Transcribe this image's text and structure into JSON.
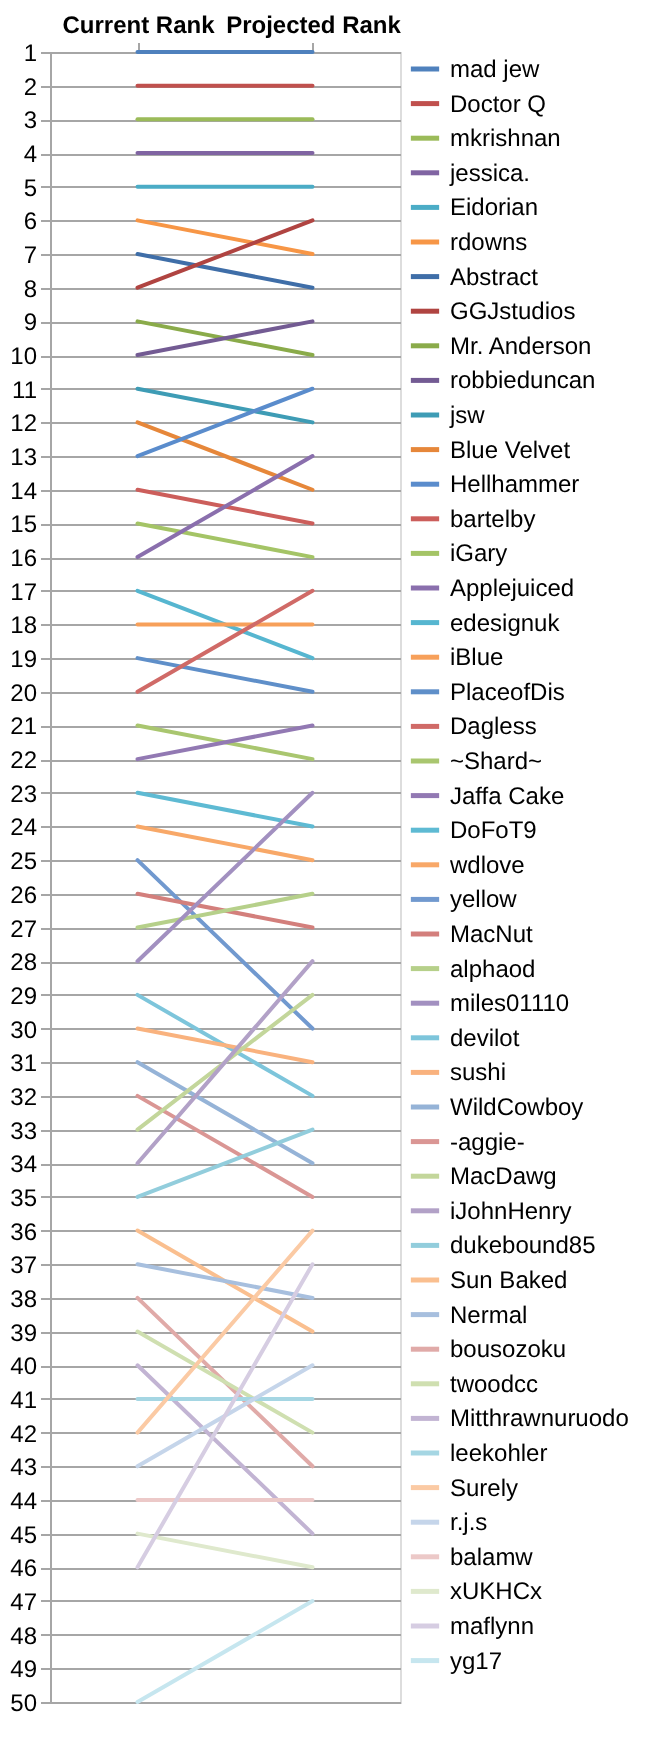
{
  "chart_data": {
    "type": "line",
    "categories": [
      "Current Rank",
      "Projected Rank"
    ],
    "ylim": [
      50,
      1
    ],
    "yticks": [
      1,
      2,
      3,
      4,
      5,
      6,
      7,
      8,
      9,
      10,
      11,
      12,
      13,
      14,
      15,
      16,
      17,
      18,
      19,
      20,
      21,
      22,
      23,
      24,
      25,
      26,
      27,
      28,
      29,
      30,
      31,
      32,
      33,
      34,
      35,
      36,
      37,
      38,
      39,
      40,
      41,
      42,
      43,
      44,
      45,
      46,
      47,
      48,
      49,
      50
    ],
    "grid": "y",
    "legend": "right",
    "series": [
      {
        "name": "mad jew",
        "color": "#4f81bd",
        "values": [
          1,
          1
        ]
      },
      {
        "name": "Doctor Q",
        "color": "#c0504d",
        "values": [
          2,
          2
        ]
      },
      {
        "name": "mkrishnan",
        "color": "#9bbb59",
        "values": [
          3,
          3
        ]
      },
      {
        "name": "jessica.",
        "color": "#8064a2",
        "values": [
          4,
          4
        ]
      },
      {
        "name": "Eidorian",
        "color": "#4bacc6",
        "values": [
          5,
          5
        ]
      },
      {
        "name": "rdowns",
        "color": "#f79646",
        "values": [
          6,
          7
        ]
      },
      {
        "name": "Abstract",
        "color": "#3f6ea8",
        "values": [
          7,
          8
        ]
      },
      {
        "name": "GGJstudios",
        "color": "#b04441",
        "values": [
          8,
          6
        ]
      },
      {
        "name": "Mr. Anderson",
        "color": "#8aab4a",
        "values": [
          9,
          10
        ]
      },
      {
        "name": "robbieduncan",
        "color": "#735b93",
        "values": [
          10,
          9
        ]
      },
      {
        "name": "jsw",
        "color": "#3e9cb5",
        "values": [
          11,
          12
        ]
      },
      {
        "name": "Blue Velvet",
        "color": "#e6873a",
        "values": [
          12,
          14
        ]
      },
      {
        "name": "Hellhammer",
        "color": "#5a8ccc",
        "values": [
          13,
          11
        ]
      },
      {
        "name": "bartelby",
        "color": "#cc5e5b",
        "values": [
          14,
          15
        ]
      },
      {
        "name": "iGary",
        "color": "#a4c466",
        "values": [
          15,
          16
        ]
      },
      {
        "name": "Applejuiced",
        "color": "#8a6fad",
        "values": [
          16,
          13
        ]
      },
      {
        "name": "edesignuk",
        "color": "#56b6d0",
        "values": [
          17,
          19
        ]
      },
      {
        "name": "iBlue",
        "color": "#f7a05a",
        "values": [
          18,
          18
        ]
      },
      {
        "name": "PlaceofDis",
        "color": "#5f8fc9",
        "values": [
          19,
          20
        ]
      },
      {
        "name": "Dagless",
        "color": "#d06a67",
        "values": [
          20,
          17
        ]
      },
      {
        "name": "~Shard~",
        "color": "#a9c66f",
        "values": [
          21,
          22
        ]
      },
      {
        "name": "Jaffa Cake",
        "color": "#9279b3",
        "values": [
          22,
          21
        ]
      },
      {
        "name": "DoFoT9",
        "color": "#5ebad3",
        "values": [
          23,
          24
        ]
      },
      {
        "name": "wdlove",
        "color": "#f8a868",
        "values": [
          24,
          25
        ]
      },
      {
        "name": "yellow",
        "color": "#7199cf",
        "values": [
          25,
          30
        ]
      },
      {
        "name": "MacNut",
        "color": "#d37f7c",
        "values": [
          26,
          27
        ]
      },
      {
        "name": "alphaod",
        "color": "#b6d08a",
        "values": [
          27,
          26
        ]
      },
      {
        "name": "miles01110",
        "color": "#a290c0",
        "values": [
          28,
          23
        ]
      },
      {
        "name": "devilot",
        "color": "#7dc5db",
        "values": [
          29,
          32
        ]
      },
      {
        "name": "sushi",
        "color": "#f9b27e",
        "values": [
          30,
          31
        ]
      },
      {
        "name": "WildCowboy",
        "color": "#95b3d7",
        "values": [
          31,
          34
        ]
      },
      {
        "name": "-aggie-",
        "color": "#da9694",
        "values": [
          32,
          35
        ]
      },
      {
        "name": "MacDawg",
        "color": "#c3d69b",
        "values": [
          33,
          29
        ]
      },
      {
        "name": "iJohnHenry",
        "color": "#b2a1c7",
        "values": [
          34,
          28
        ]
      },
      {
        "name": "dukebound85",
        "color": "#92cddc",
        "values": [
          35,
          33
        ]
      },
      {
        "name": "Sun Baked",
        "color": "#fabf8f",
        "values": [
          36,
          39
        ]
      },
      {
        "name": "Nermal",
        "color": "#a7bfde",
        "values": [
          37,
          38
        ]
      },
      {
        "name": "bousozoku",
        "color": "#e0aaa8",
        "values": [
          38,
          43
        ]
      },
      {
        "name": "twoodcc",
        "color": "#cfdfb0",
        "values": [
          39,
          42
        ]
      },
      {
        "name": "Mitthrawnuruodo",
        "color": "#c2b4d3",
        "values": [
          40,
          45
        ]
      },
      {
        "name": "leekohler",
        "color": "#a5d6e3",
        "values": [
          41,
          41
        ]
      },
      {
        "name": "Surely",
        "color": "#fbcaa4",
        "values": [
          42,
          36
        ]
      },
      {
        "name": "r.j.s",
        "color": "#c5d5ea",
        "values": [
          43,
          40
        ]
      },
      {
        "name": "balamw",
        "color": "#ecc9c8",
        "values": [
          44,
          44
        ]
      },
      {
        "name": "xUKHCx",
        "color": "#dfe9cd",
        "values": [
          45,
          46
        ]
      },
      {
        "name": "maflynn",
        "color": "#d6cde2",
        "values": [
          46,
          37
        ]
      },
      {
        "name": "yg17",
        "color": "#c6e6ef",
        "values": [
          50,
          47
        ]
      }
    ]
  }
}
